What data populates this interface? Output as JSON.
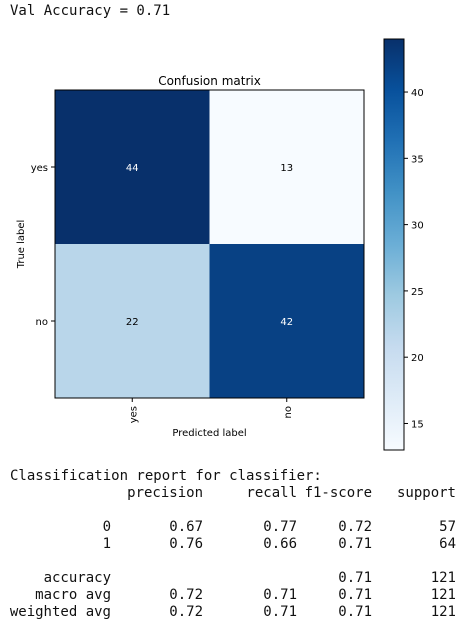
{
  "val_accuracy_text": "Val Accuracy = 0.71",
  "chart_data": {
    "type": "heatmap",
    "title": "Confusion matrix",
    "xlabel": "Predicted label",
    "ylabel": "True label",
    "x_categories": [
      "yes",
      "no"
    ],
    "y_categories": [
      "yes",
      "no"
    ],
    "values": [
      [
        44,
        13
      ],
      [
        22,
        42
      ]
    ],
    "colorbar": {
      "ticks": [
        "15",
        "20",
        "25",
        "30",
        "35",
        "40"
      ],
      "range": [
        13,
        44
      ]
    },
    "colormap": {
      "low": "#f7fbff",
      "high": "#08306b"
    }
  },
  "report": {
    "title": "Classification report for classifier:",
    "headers": [
      "precision",
      "recall",
      "f1-score",
      "support"
    ],
    "rows": [
      {
        "label": "0",
        "precision": "0.67",
        "recall": "0.77",
        "f1": "0.72",
        "support": "57"
      },
      {
        "label": "1",
        "precision": "0.76",
        "recall": "0.66",
        "f1": "0.71",
        "support": "64"
      }
    ],
    "summary": [
      {
        "label": "accuracy",
        "precision": "",
        "recall": "",
        "f1": "0.71",
        "support": "121"
      },
      {
        "label": "macro avg",
        "precision": "0.72",
        "recall": "0.71",
        "f1": "0.71",
        "support": "121"
      },
      {
        "label": "weighted avg",
        "precision": "0.72",
        "recall": "0.71",
        "f1": "0.71",
        "support": "121"
      }
    ]
  }
}
